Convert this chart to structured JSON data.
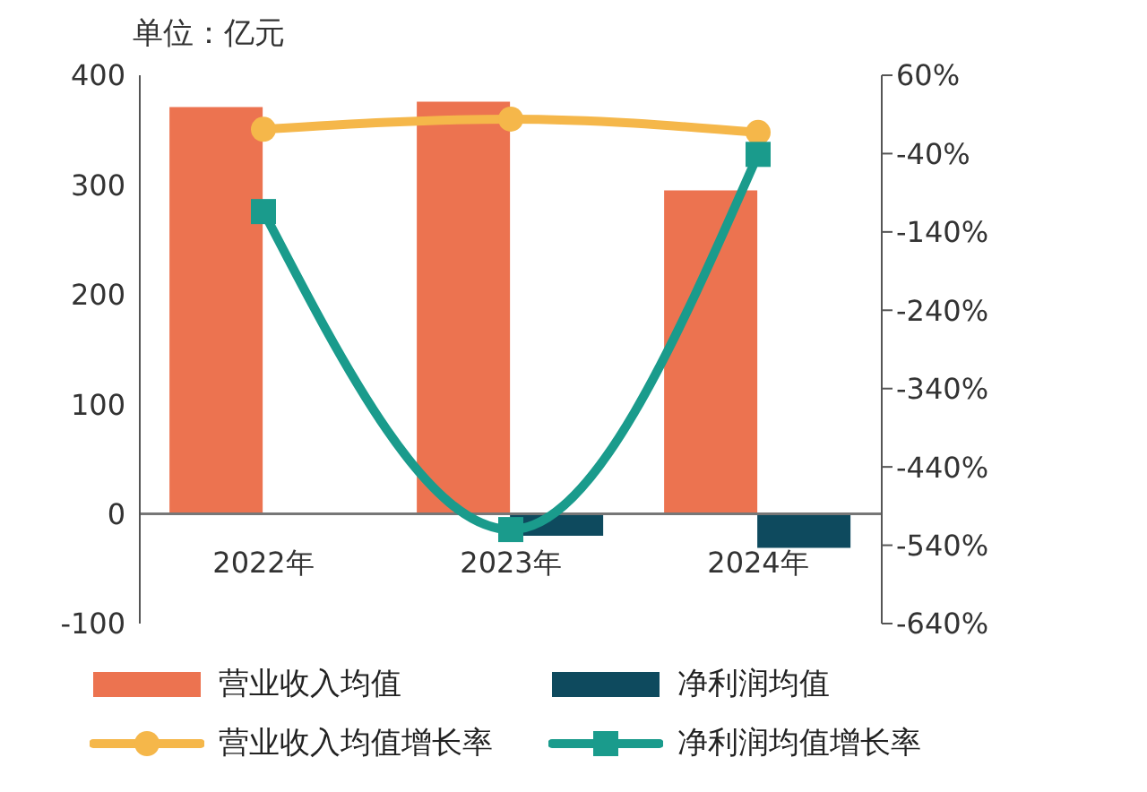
{
  "chart_data": {
    "type": "bar",
    "ylabel": "单位：亿元",
    "categories": [
      "2022年",
      "2023年",
      "2024年"
    ],
    "series": [
      {
        "name": "营业收入均值",
        "color": "#ec7350",
        "values": [
          371,
          376,
          295
        ]
      },
      {
        "name": "净利润均值",
        "color": "#0e4a5e",
        "values": [
          0,
          -20,
          -31
        ]
      },
      {
        "name": "营业收入均值增长率",
        "type": "line",
        "axis": "y2",
        "marker": "circle",
        "color": "#f5b74a",
        "values": [
          -9,
          4,
          -13
        ]
      },
      {
        "name": "净利润均值增长率",
        "type": "line",
        "axis": "y2",
        "marker": "square",
        "color": "#1a9b8c",
        "values": [
          -114,
          -520,
          -41
        ]
      }
    ],
    "ylim": [
      -100,
      400
    ],
    "yticks": [
      -100,
      0,
      100,
      200,
      300,
      400
    ],
    "y2lim": [
      -640,
      60
    ],
    "y2ticks": [
      {
        "value": 60,
        "label": "60%"
      },
      {
        "value": -40,
        "label": "-40%"
      },
      {
        "value": -140,
        "label": "-140%"
      },
      {
        "value": -240,
        "label": "-240%"
      },
      {
        "value": -340,
        "label": "-340%"
      },
      {
        "value": -440,
        "label": "-440%"
      },
      {
        "value": -540,
        "label": "-540%"
      },
      {
        "value": -640,
        "label": "-640%"
      }
    ],
    "line_style": "solid",
    "grid": false,
    "legend": "bottom"
  }
}
